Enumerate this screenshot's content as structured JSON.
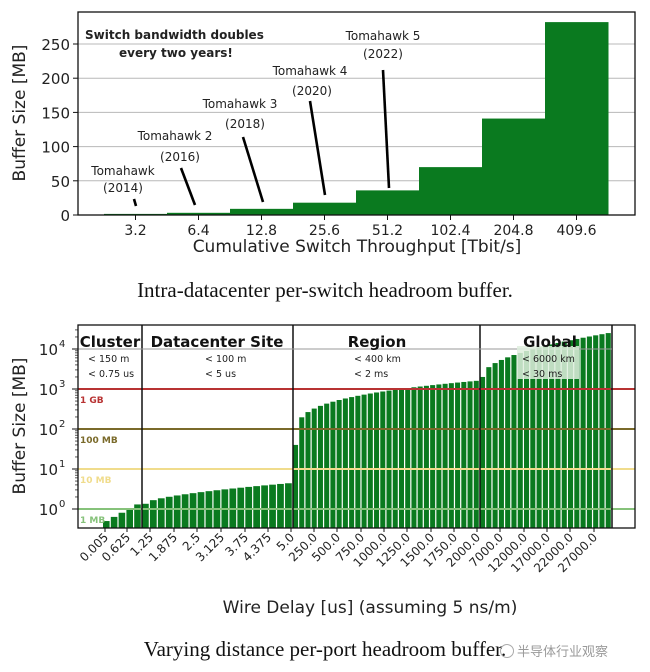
{
  "chart_data": [
    {
      "type": "bar",
      "title": "",
      "caption": "Intra-datacenter per-switch headroom buffer.",
      "xlabel": "Cumulative Switch Throughput [Tbit/s]",
      "ylabel": "Buffer Size [MB]",
      "ylim": [
        0,
        290
      ],
      "yticks": [
        0,
        50,
        100,
        150,
        200,
        250
      ],
      "grid": "horizontal",
      "bar_color": "#0a7a1f",
      "categories": [
        "3.2",
        "6.4",
        "12.8",
        "25.6",
        "51.2",
        "102.4",
        "204.8",
        "409.6"
      ],
      "values": [
        1.6,
        3.2,
        9,
        18,
        36,
        70,
        141,
        282
      ],
      "annotations": [
        {
          "text": "Switch bandwidth doubles",
          "bold": true
        },
        {
          "text": "every two years!",
          "bold": true
        },
        {
          "label": "Tomahawk",
          "year": "(2014)",
          "points_to": "3.2"
        },
        {
          "label": "Tomahawk 2",
          "year": "(2016)",
          "points_to": "6.4"
        },
        {
          "label": "Tomahawk 3",
          "year": "(2018)",
          "points_to": "12.8"
        },
        {
          "label": "Tomahawk 4",
          "year": "(2020)",
          "points_to": "25.6"
        },
        {
          "label": "Tomahawk 5",
          "year": "(2022)",
          "points_to": "51.2"
        }
      ]
    },
    {
      "type": "bar",
      "title": "",
      "caption": "Varying distance per-port headroom buffer.",
      "xlabel": "Wire Delay [us] (assuming 5 ns/m)",
      "ylabel": "Buffer Size [MB]",
      "yscale": "log",
      "ylim": [
        0.4,
        40000
      ],
      "yticks": [
        "10^0",
        "10^1",
        "10^2",
        "10^3",
        "10^4"
      ],
      "bar_color": "#0a7a1f",
      "xtick_labels": [
        "0.005",
        "0.625",
        "1.25",
        "1.875",
        "2.5",
        "3.125",
        "3.75",
        "4.375",
        "5.0",
        "250.0",
        "500.0",
        "750.0",
        "1000.0",
        "1250.0",
        "1500.0",
        "1750.0",
        "2000.0",
        "7000.0",
        "12000.0",
        "17000.0",
        "22000.0",
        "27000.0"
      ],
      "reference_lines": [
        {
          "label": "1 GB",
          "value_mb": 1000,
          "color": "#b83232"
        },
        {
          "label": "100 MB",
          "value_mb": 100,
          "color": "#7a6a2a"
        },
        {
          "label": "10 MB",
          "value_mb": 10,
          "color": "#f0dc8c"
        },
        {
          "label": "1 MB",
          "value_mb": 1,
          "color": "#86c27a"
        }
      ],
      "regions": [
        {
          "name": "Cluster",
          "distance": "< 150 m",
          "delay": "< 0.75 us"
        },
        {
          "name": "Datacenter Site",
          "distance": "< 100 m",
          "delay": "< 5 us"
        },
        {
          "name": "Region",
          "distance": "< 400 km",
          "delay": "< 2 ms"
        },
        {
          "name": "Global",
          "distance": "< 6000 km",
          "delay": "< 30 ms"
        }
      ],
      "series_approx": {
        "cluster_range_mb": [
          0.5,
          1.3
        ],
        "datacenter_range_mb": [
          1.3,
          4.4
        ],
        "region_range_mb": [
          40,
          1600
        ],
        "global_range_mb": [
          2000,
          25000
        ]
      }
    }
  ],
  "watermark": "半导体行业观察"
}
